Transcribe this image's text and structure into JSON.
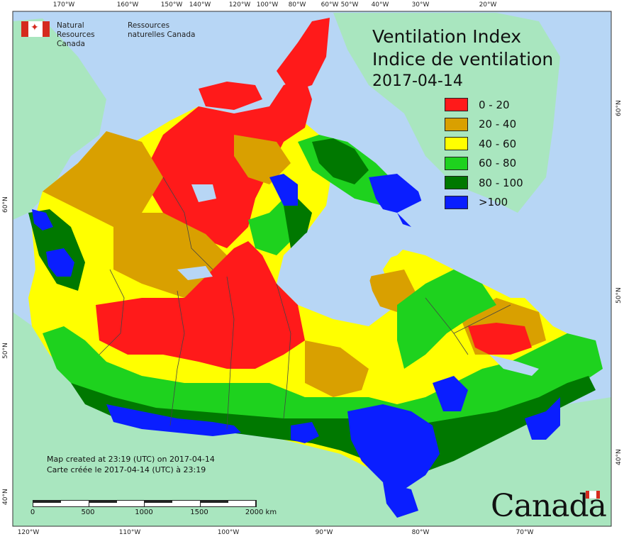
{
  "header": {
    "logo_en": "Natural Resources Canada",
    "logo_fr": "Ressources naturelles Canada"
  },
  "title": {
    "line_en": "Ventilation Index",
    "line_fr": "Indice de ventilation",
    "date": "2017-04-14"
  },
  "legend": [
    {
      "label": "0 - 20",
      "color": "#ff1a1a"
    },
    {
      "label": "20 - 40",
      "color": "#d9a000"
    },
    {
      "label": "40 - 60",
      "color": "#ffff00"
    },
    {
      "label": "60 - 80",
      "color": "#1ed21e"
    },
    {
      "label": "80 - 100",
      "color": "#007800"
    },
    {
      "label": ">100",
      "color": "#0a1eff"
    }
  ],
  "credits": {
    "line_en": "Map created at 23:19 (UTC) on 2017-04-14",
    "line_fr": "Carte créée le 2017-04-14 (UTC) à 23:19"
  },
  "scalebar": {
    "labels": [
      "0",
      "500",
      "1000",
      "1500",
      "2000 km"
    ]
  },
  "graticule": {
    "top": [
      "170°W",
      "160°W",
      "150°W",
      "140°W",
      "120°W",
      "100°W",
      "80°W",
      "60°W",
      "50°W",
      "40°W",
      "30°W",
      "20°W"
    ],
    "bottom": [
      "120°W",
      "110°W",
      "100°W",
      "90°W",
      "80°W",
      "70°W"
    ],
    "left": [
      "60°N",
      "50°N",
      "40°N"
    ],
    "right": [
      "60°N",
      "50°N",
      "40°N"
    ]
  },
  "wordmark": "Canada",
  "colors": {
    "ocean": "#b7d6f5",
    "land_other": "#a9e6bf",
    "very_low": "#ff1a1a",
    "low": "#d9a000",
    "moderate": "#ffff00",
    "good": "#1ed21e",
    "very_good": "#007800",
    "excellent": "#0a1eff"
  }
}
